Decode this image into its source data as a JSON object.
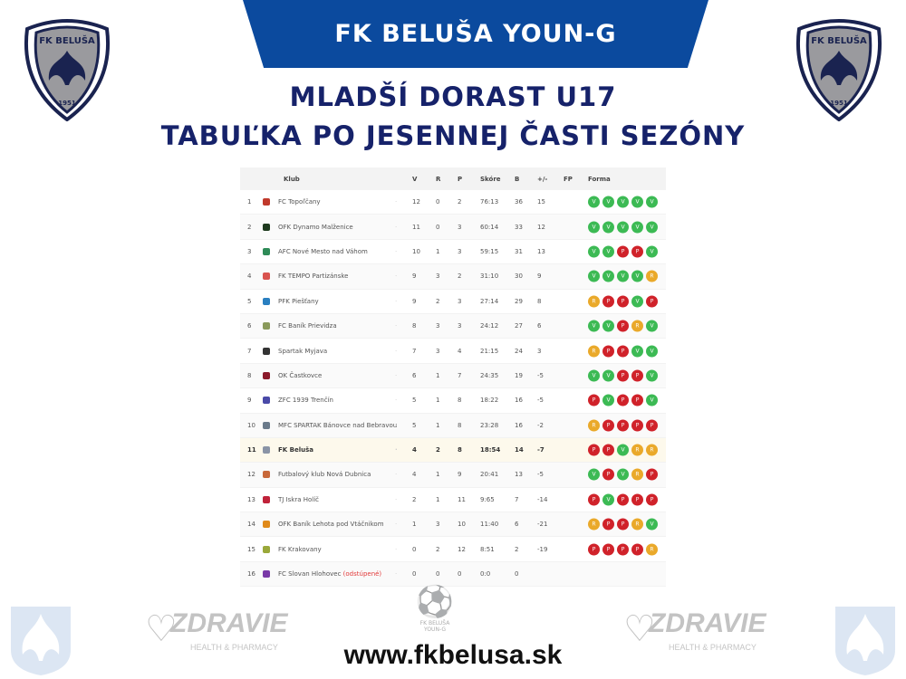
{
  "header": {
    "banner_title": "FK BELUŠA YOUN-G",
    "title_line1": "MLADŠÍ DORAST U17",
    "title_line2": "TABUĽKA PO JESENNEJ ČASTI SEZÓNY",
    "logo_text": "FK BELUŠA",
    "logo_year": "1951"
  },
  "colors": {
    "banner": "#0b4a9e",
    "title": "#16226a",
    "win": "#3cba54",
    "loss": "#d0222a",
    "draw": "#eaa92a"
  },
  "table": {
    "columns": [
      "Klub",
      "V",
      "R",
      "P",
      "Skóre",
      "B",
      "+/-",
      "FP",
      "Forma"
    ],
    "rows": [
      {
        "pos": "1",
        "club": "FC Topoľčany",
        "v": "12",
        "r": "0",
        "p": "2",
        "score": "76:13",
        "b": "36",
        "diff": "15",
        "form": [
          "V",
          "V",
          "V",
          "V",
          "V"
        ],
        "logo": "#c0392b"
      },
      {
        "pos": "2",
        "club": "OFK Dynamo Malženice",
        "v": "11",
        "r": "0",
        "p": "3",
        "score": "60:14",
        "b": "33",
        "diff": "12",
        "form": [
          "V",
          "V",
          "V",
          "V",
          "V"
        ],
        "logo": "#1e3a1e"
      },
      {
        "pos": "3",
        "club": "AFC Nové Mesto nad Váhom",
        "v": "10",
        "r": "1",
        "p": "3",
        "score": "59:15",
        "b": "31",
        "diff": "13",
        "form": [
          "V",
          "V",
          "P",
          "P",
          "V"
        ],
        "logo": "#2e8b57"
      },
      {
        "pos": "4",
        "club": "FK TEMPO Partizánske",
        "v": "9",
        "r": "3",
        "p": "2",
        "score": "31:10",
        "b": "30",
        "diff": "9",
        "form": [
          "V",
          "V",
          "V",
          "V",
          "R"
        ],
        "logo": "#d9534f"
      },
      {
        "pos": "5",
        "club": "PFK Piešťany",
        "v": "9",
        "r": "2",
        "p": "3",
        "score": "27:14",
        "b": "29",
        "diff": "8",
        "form": [
          "R",
          "P",
          "P",
          "V",
          "P"
        ],
        "logo": "#2a7fc0"
      },
      {
        "pos": "6",
        "club": "FC Baník Prievidza",
        "v": "8",
        "r": "3",
        "p": "3",
        "score": "24:12",
        "b": "27",
        "diff": "6",
        "form": [
          "V",
          "V",
          "P",
          "R",
          "V"
        ],
        "logo": "#8a9a5b"
      },
      {
        "pos": "7",
        "club": "Spartak Myjava",
        "v": "7",
        "r": "3",
        "p": "4",
        "score": "21:15",
        "b": "24",
        "diff": "3",
        "form": [
          "R",
          "P",
          "P",
          "V",
          "V"
        ],
        "logo": "#333333"
      },
      {
        "pos": "8",
        "club": "OK Častkovce",
        "v": "6",
        "r": "1",
        "p": "7",
        "score": "24:35",
        "b": "19",
        "diff": "-5",
        "form": [
          "V",
          "V",
          "P",
          "P",
          "V"
        ],
        "logo": "#8b1a2b"
      },
      {
        "pos": "9",
        "club": "ZFC 1939 Trenčín",
        "v": "5",
        "r": "1",
        "p": "8",
        "score": "18:22",
        "b": "16",
        "diff": "-5",
        "form": [
          "P",
          "V",
          "P",
          "P",
          "V"
        ],
        "logo": "#4a4aa8"
      },
      {
        "pos": "10",
        "club": "MFC SPARTAK Bánovce nad Bebravou",
        "v": "5",
        "r": "1",
        "p": "8",
        "score": "23:28",
        "b": "16",
        "diff": "-2",
        "form": [
          "R",
          "P",
          "P",
          "P",
          "P"
        ],
        "logo": "#6a7a8a"
      },
      {
        "pos": "11",
        "club": "FK Beluša",
        "v": "4",
        "r": "2",
        "p": "8",
        "score": "18:54",
        "b": "14",
        "diff": "-7",
        "form": [
          "P",
          "P",
          "V",
          "R",
          "R"
        ],
        "logo": "#8a94a6",
        "highlight": true
      },
      {
        "pos": "12",
        "club": "Futbalový klub Nová Dubnica",
        "v": "4",
        "r": "1",
        "p": "9",
        "score": "20:41",
        "b": "13",
        "diff": "-5",
        "form": [
          "V",
          "P",
          "V",
          "R",
          "P"
        ],
        "logo": "#c8683a"
      },
      {
        "pos": "13",
        "club": "TJ Iskra Holíč",
        "v": "2",
        "r": "1",
        "p": "11",
        "score": "9:65",
        "b": "7",
        "diff": "-14",
        "form": [
          "P",
          "V",
          "P",
          "P",
          "P"
        ],
        "logo": "#c0223a"
      },
      {
        "pos": "14",
        "club": "OFK Baník Lehota pod Vtáčnikom",
        "v": "1",
        "r": "3",
        "p": "10",
        "score": "11:40",
        "b": "6",
        "diff": "-21",
        "form": [
          "R",
          "P",
          "P",
          "R",
          "V"
        ],
        "logo": "#e08a1a"
      },
      {
        "pos": "15",
        "club": "FK Krakovany",
        "v": "0",
        "r": "2",
        "p": "12",
        "score": "8:51",
        "b": "2",
        "diff": "-19",
        "form": [
          "P",
          "P",
          "P",
          "P",
          "R"
        ],
        "logo": "#9aa83a"
      },
      {
        "pos": "16",
        "club": "FC Slovan Hlohovec",
        "note": "(odstúpené)",
        "v": "0",
        "r": "0",
        "p": "0",
        "score": "0:0",
        "b": "0",
        "diff": "",
        "form": [],
        "logo": "#7a3aa8"
      }
    ]
  },
  "footer": {
    "url": "www.fkbelusa.sk",
    "sponsor_name": "ZDRAVIE",
    "sponsor_sub": "HEALTH & PHARMACY",
    "center_logo_line1": "FK BELUŠA",
    "center_logo_line2": "YOUN-G"
  }
}
